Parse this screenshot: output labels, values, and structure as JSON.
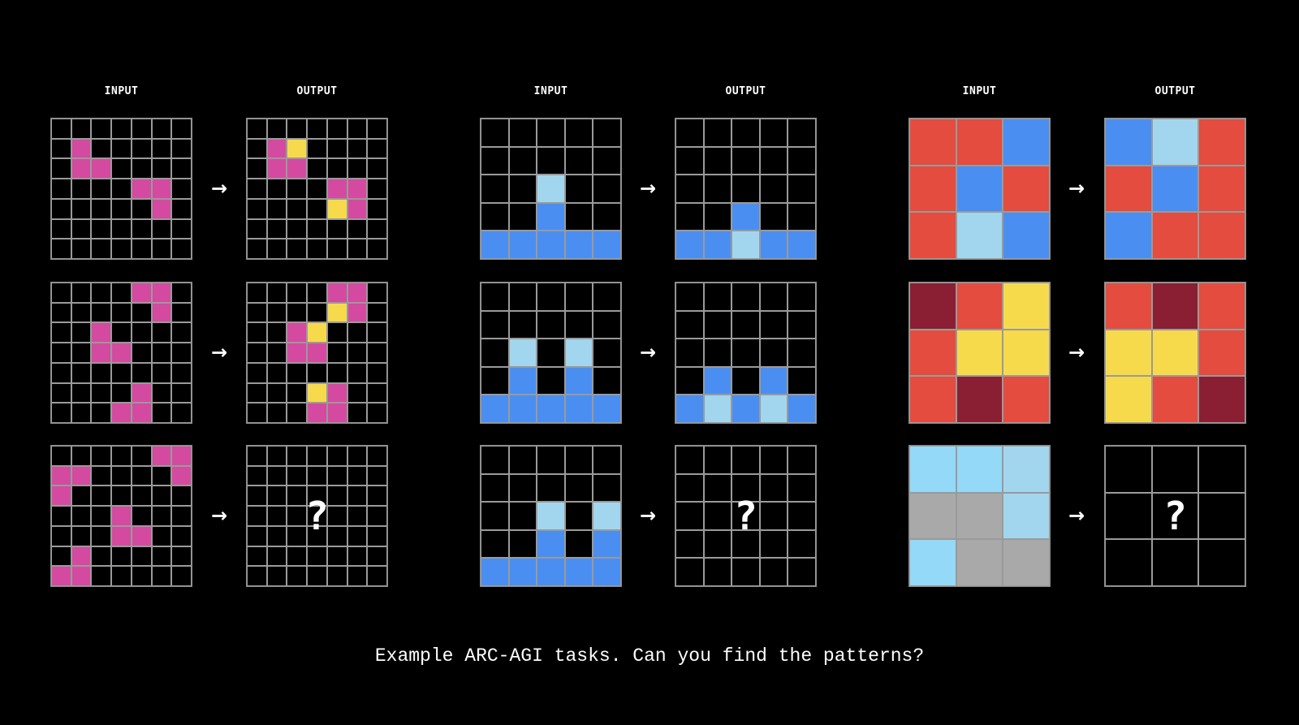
{
  "palette": {
    ".": "#000000",
    "P": "#d44aa0",
    "Y": "#f7da4b",
    "B": "#4a8ef2",
    "L": "#a2d6ee",
    "C": "#94d9f8",
    "R": "#e34c3e",
    "M": "#8a1f33",
    "G": "#a9a9a9"
  },
  "labels": {
    "input": "INPUT",
    "output": "OUTPUT",
    "arrow": "→",
    "unknown": "?"
  },
  "caption": "Example ARC-AGI tasks. Can you find the patterns?",
  "tasks": [
    {
      "pairs": [
        {
          "input": [
            ".......",
            ".P.....",
            ".PP....",
            "....PP.",
            ".....P.",
            ".......",
            "......."
          ],
          "output": [
            ".......",
            ".PY....",
            ".PP....",
            "....PP.",
            "....YP.",
            ".......",
            "......."
          ]
        },
        {
          "input": [
            "....PP.",
            ".....P.",
            "..P....",
            "..PP...",
            ".......",
            "....P..",
            "...PP.."
          ],
          "output": [
            "....PP.",
            "....YP.",
            "..PY...",
            "..PP...",
            ".......",
            "...YP..",
            "...PP.."
          ]
        },
        {
          "input": [
            ".....PP",
            "PP....P",
            "P......",
            "...P...",
            "...PP..",
            ".P.....",
            "PP....."
          ],
          "output": null,
          "output_size": 7
        }
      ]
    },
    {
      "pairs": [
        {
          "input": [
            ".....",
            ".....",
            "..L..",
            "..B..",
            "BBBBB"
          ],
          "output": [
            ".....",
            ".....",
            ".....",
            "..B..",
            "BBLBB"
          ]
        },
        {
          "input": [
            ".....",
            ".....",
            ".L.L.",
            ".B.B.",
            "BBBBB"
          ],
          "output": [
            ".....",
            ".....",
            ".....",
            ".B.B.",
            "BLBLB"
          ]
        },
        {
          "input": [
            ".....",
            ".....",
            "..L.L",
            "..B.B",
            "BBBBB"
          ],
          "output": null,
          "output_size": 5
        }
      ]
    },
    {
      "pairs": [
        {
          "input": [
            "RRB",
            "RBR",
            "RLB"
          ],
          "output": [
            "BLR",
            "RBR",
            "BRR"
          ]
        },
        {
          "input": [
            "MRY",
            "RYY",
            "RMR"
          ],
          "output": [
            "RMR",
            "YYR",
            "YRM"
          ]
        },
        {
          "input": [
            "CCL",
            "GGL",
            "CGG"
          ],
          "output": null,
          "output_size": 3
        }
      ]
    }
  ]
}
